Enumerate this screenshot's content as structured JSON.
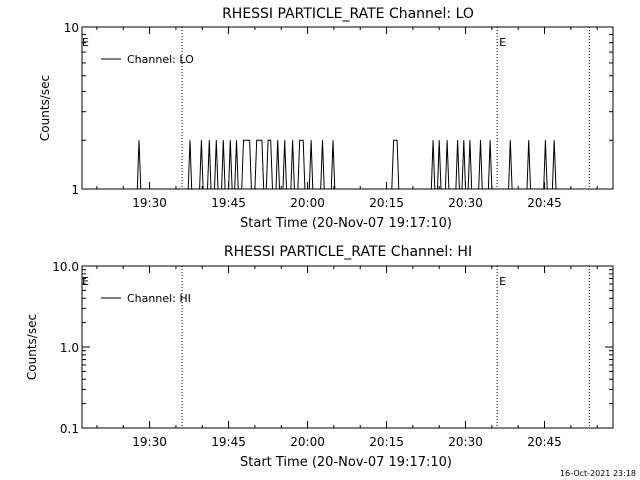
{
  "footer": {
    "timestamp": "16-Oct-2021 23:18"
  },
  "chart_data": [
    {
      "type": "line",
      "title": "RHESSI PARTICLE_RATE Channel: LO",
      "xlabel": "Start Time (20-Nov-07 19:17:10)",
      "ylabel": "Counts/sec",
      "yscale": "log",
      "ylim": [
        1,
        10
      ],
      "xlim": [
        "19:17:10",
        "20:58:00"
      ],
      "xticks": [
        "19:30",
        "19:45",
        "20:00",
        "20:15",
        "20:30",
        "20:45"
      ],
      "yticks": [
        "1",
        "10"
      ],
      "legend": {
        "position": "top-left",
        "entries": [
          "Channel: LO"
        ]
      },
      "event_lines": [
        {
          "time": "19:36:10",
          "label": ""
        },
        {
          "time": "20:36:00",
          "label": "E"
        },
        {
          "time": "20:53:30",
          "label": ""
        }
      ],
      "start_marker": "E",
      "series": [
        {
          "name": "Channel: LO",
          "points": [
            [
              "19:17:10",
              1
            ],
            [
              "19:27:40",
              1
            ],
            [
              "19:28:00",
              2
            ],
            [
              "19:28:20",
              1
            ],
            [
              "19:37:20",
              1
            ],
            [
              "19:37:40",
              2
            ],
            [
              "19:38:00",
              1
            ],
            [
              "19:39:30",
              1
            ],
            [
              "19:39:50",
              2
            ],
            [
              "19:40:10",
              1
            ],
            [
              "19:41:00",
              1
            ],
            [
              "19:41:20",
              2
            ],
            [
              "19:41:40",
              1
            ],
            [
              "19:42:20",
              1
            ],
            [
              "19:42:40",
              2
            ],
            [
              "19:43:00",
              1
            ],
            [
              "19:43:40",
              1
            ],
            [
              "19:44:00",
              2
            ],
            [
              "19:44:20",
              1
            ],
            [
              "19:45:00",
              1
            ],
            [
              "19:45:20",
              2
            ],
            [
              "19:45:40",
              1
            ],
            [
              "19:46:10",
              1
            ],
            [
              "19:46:30",
              2
            ],
            [
              "19:46:50",
              1
            ],
            [
              "19:47:30",
              1
            ],
            [
              "19:47:50",
              2
            ],
            [
              "19:49:00",
              2
            ],
            [
              "19:49:20",
              1
            ],
            [
              "19:50:00",
              1
            ],
            [
              "19:50:20",
              2
            ],
            [
              "19:51:20",
              2
            ],
            [
              "19:51:40",
              1
            ],
            [
              "19:52:10",
              1
            ],
            [
              "19:52:30",
              2
            ],
            [
              "19:53:00",
              2
            ],
            [
              "19:53:20",
              1
            ],
            [
              "19:54:00",
              1
            ],
            [
              "19:54:20",
              2
            ],
            [
              "19:54:40",
              1
            ],
            [
              "19:55:20",
              1
            ],
            [
              "19:55:40",
              2
            ],
            [
              "19:56:00",
              1
            ],
            [
              "19:56:50",
              1
            ],
            [
              "19:57:10",
              2
            ],
            [
              "19:57:30",
              1
            ],
            [
              "19:58:10",
              1
            ],
            [
              "19:58:30",
              2
            ],
            [
              "19:59:10",
              2
            ],
            [
              "19:59:30",
              1
            ],
            [
              "20:00:20",
              1
            ],
            [
              "20:00:40",
              2
            ],
            [
              "20:01:00",
              1
            ],
            [
              "20:02:30",
              1
            ],
            [
              "20:02:50",
              2
            ],
            [
              "20:03:10",
              1
            ],
            [
              "20:04:30",
              1
            ],
            [
              "20:04:50",
              2
            ],
            [
              "20:05:10",
              1
            ],
            [
              "20:16:00",
              1
            ],
            [
              "20:16:20",
              2
            ],
            [
              "20:17:00",
              2
            ],
            [
              "20:17:20",
              1
            ],
            [
              "20:23:30",
              1
            ],
            [
              "20:23:50",
              2
            ],
            [
              "20:24:10",
              1
            ],
            [
              "20:24:40",
              1
            ],
            [
              "20:25:00",
              2
            ],
            [
              "20:25:20",
              1
            ],
            [
              "20:26:10",
              1
            ],
            [
              "20:26:30",
              2
            ],
            [
              "20:26:50",
              1
            ],
            [
              "20:28:10",
              1
            ],
            [
              "20:28:30",
              2
            ],
            [
              "20:28:50",
              1
            ],
            [
              "20:29:20",
              1
            ],
            [
              "20:29:40",
              2
            ],
            [
              "20:30:00",
              1
            ],
            [
              "20:30:30",
              1
            ],
            [
              "20:30:50",
              2
            ],
            [
              "20:31:10",
              1
            ],
            [
              "20:32:30",
              1
            ],
            [
              "20:32:50",
              2
            ],
            [
              "20:33:10",
              1
            ],
            [
              "20:34:20",
              1
            ],
            [
              "20:34:40",
              2
            ],
            [
              "20:35:00",
              1
            ],
            [
              "20:38:10",
              1
            ],
            [
              "20:38:30",
              2
            ],
            [
              "20:38:50",
              1
            ],
            [
              "20:41:40",
              1
            ],
            [
              "20:42:00",
              2
            ],
            [
              "20:42:20",
              1
            ],
            [
              "20:44:50",
              1
            ],
            [
              "20:45:10",
              2
            ],
            [
              "20:45:30",
              1
            ],
            [
              "20:46:30",
              1
            ],
            [
              "20:46:50",
              2
            ],
            [
              "20:47:10",
              1
            ],
            [
              "20:58:00",
              1
            ]
          ]
        }
      ]
    },
    {
      "type": "line",
      "title": "RHESSI PARTICLE_RATE Channel: HI",
      "xlabel": "Start Time (20-Nov-07 19:17:10)",
      "ylabel": "Counts/sec",
      "yscale": "log",
      "ylim": [
        0.1,
        10
      ],
      "xlim": [
        "19:17:10",
        "20:58:00"
      ],
      "xticks": [
        "19:30",
        "19:45",
        "20:00",
        "20:15",
        "20:30",
        "20:45"
      ],
      "yticks": [
        "0.1",
        "1.0",
        "10.0"
      ],
      "legend": {
        "position": "top-left",
        "entries": [
          "Channel: HI"
        ]
      },
      "event_lines": [
        {
          "time": "19:36:10",
          "label": ""
        },
        {
          "time": "20:36:00",
          "label": "E"
        },
        {
          "time": "20:53:30",
          "label": ""
        }
      ],
      "start_marker": "E",
      "series": [
        {
          "name": "Channel: HI",
          "points": []
        }
      ]
    }
  ]
}
